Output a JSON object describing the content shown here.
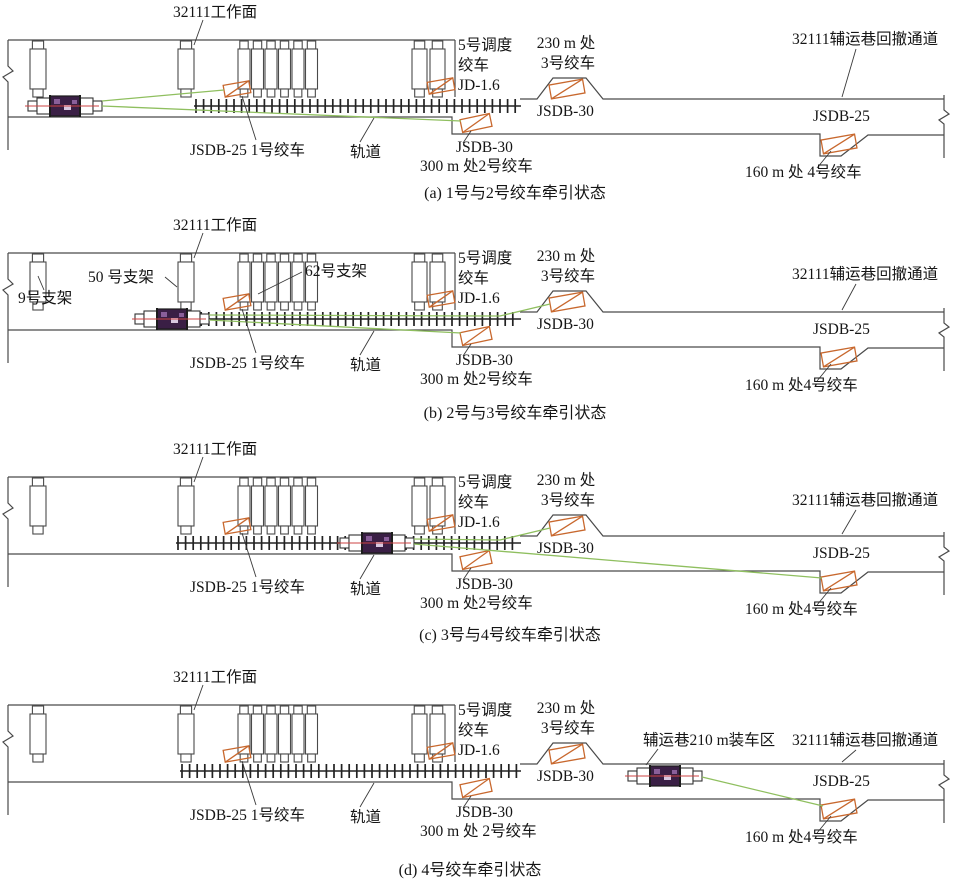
{
  "panels": [
    {
      "id": "a",
      "caption": "(a) 1号与2号绞车牵引状态",
      "labels": {
        "working_face": "32111工作面",
        "dispatch_winch": [
          "5号调度",
          "绞车",
          "JD-1.6"
        ],
        "winch3_location": [
          "230 m 处",
          "3号绞车"
        ],
        "winch3_model": "JSDB-30",
        "retreat_channel": "32111辅运巷回撤通道",
        "winch4_model": "JSDB-25",
        "winch4_location": "160 m 处 4号绞车",
        "winch2_model": "JSDB-30",
        "winch2_location": "300 m 处2号绞车",
        "winch1": "JSDB-25  1号绞车",
        "track": "轨道"
      }
    },
    {
      "id": "b",
      "caption": "(b) 2号与3号绞车牵引状态",
      "labels": {
        "working_face": "32111工作面",
        "support50": "50 号支架",
        "support9": "9号支架",
        "support62": "62号支架",
        "dispatch_winch": [
          "5号调度",
          "绞车",
          "JD-1.6"
        ],
        "winch3_location": [
          "230 m 处",
          "3号绞车"
        ],
        "winch3_model": "JSDB-30",
        "retreat_channel": "32111辅运巷回撤通道",
        "winch4_model": "JSDB-25",
        "winch4_location": "160 m 处4号绞车",
        "winch2_model": "JSDB-30",
        "winch2_location": "300 m 处2号绞车",
        "winch1": "JSDB-25  1号绞车",
        "track": "轨道"
      }
    },
    {
      "id": "c",
      "caption": "(c) 3号与4号绞车牵引状态",
      "labels": {
        "working_face": "32111工作面",
        "dispatch_winch": [
          "5号调度",
          "绞车",
          "JD-1.6"
        ],
        "winch3_location": [
          "230 m 处",
          "3号绞车"
        ],
        "winch3_model": "JSDB-30",
        "retreat_channel": "32111辅运巷回撤通道",
        "winch4_model": "JSDB-25",
        "winch4_location": "160 m 处4号绞车",
        "winch2_model": "JSDB-30",
        "winch2_location": "300 m 处2号绞车",
        "winch1": "JSDB-25  1号绞车",
        "track": "轨道"
      }
    },
    {
      "id": "d",
      "caption": "(d) 4号绞车牵引状态",
      "labels": {
        "working_face": "32111工作面",
        "loading_area": "辅运巷210 m装车区",
        "dispatch_winch": [
          "5号调度",
          "绞车",
          "JD-1.6"
        ],
        "winch3_location": [
          "230 m 处",
          "3号绞车"
        ],
        "winch3_model": "JSDB-30",
        "retreat_channel": "32111辅运巷回撤通道",
        "winch4_model": "JSDB-25",
        "winch4_location": "160 m 处4号绞车",
        "winch2_model": "JSDB-30",
        "winch2_location": "300 m 处 2号绞车",
        "winch1": "JSDB-25  1号绞车",
        "track": "轨道"
      }
    }
  ],
  "colors": {
    "outline": "#4a4a4a",
    "winch_icon": "#c8682e",
    "rope": "#8fbf5f",
    "machine_body": "#3a1f45",
    "red_mark": "#cc4343"
  }
}
